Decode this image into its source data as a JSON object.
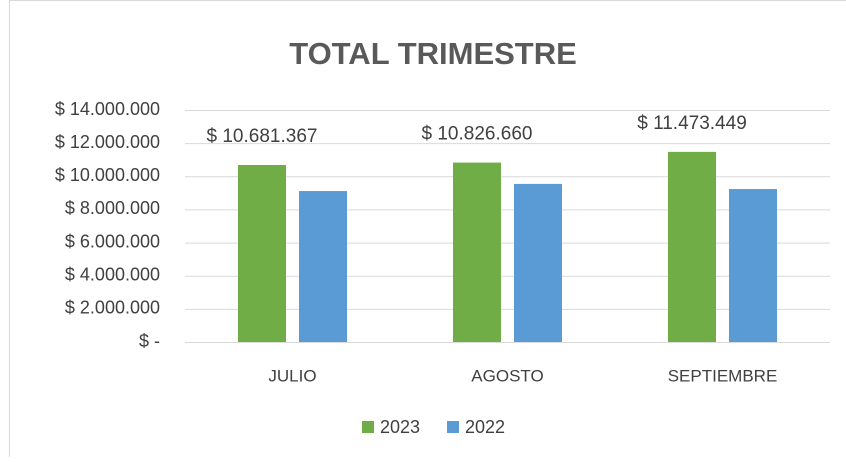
{
  "chart_data": {
    "type": "bar",
    "title": "TOTAL TRIMESTRE",
    "categories": [
      "JULIO",
      "AGOSTO",
      "SEPTIEMBRE"
    ],
    "series": [
      {
        "name": "2023",
        "color": "#70ad47",
        "values": [
          10681367,
          10826660,
          11473449
        ],
        "value_labels": [
          "$ 10.681.367",
          "$ 10.826.660",
          "$ 11.473.449"
        ]
      },
      {
        "name": "2022",
        "color": "#5b9bd5",
        "values": [
          9110000,
          9540000,
          9230000
        ]
      }
    ],
    "ylim": [
      0,
      14000000
    ],
    "yticks": [
      {
        "value": 0,
        "label": "$ -"
      },
      {
        "value": 2000000,
        "label": "$ 2.000.000"
      },
      {
        "value": 4000000,
        "label": "$ 4.000.000"
      },
      {
        "value": 6000000,
        "label": "$ 6.000.000"
      },
      {
        "value": 8000000,
        "label": "$ 8.000.000"
      },
      {
        "value": 10000000,
        "label": "$ 10.000.000"
      },
      {
        "value": 12000000,
        "label": "$ 12.000.000"
      },
      {
        "value": 14000000,
        "label": "$ 14.000.000"
      }
    ],
    "grid": true,
    "legend": "bottom"
  }
}
